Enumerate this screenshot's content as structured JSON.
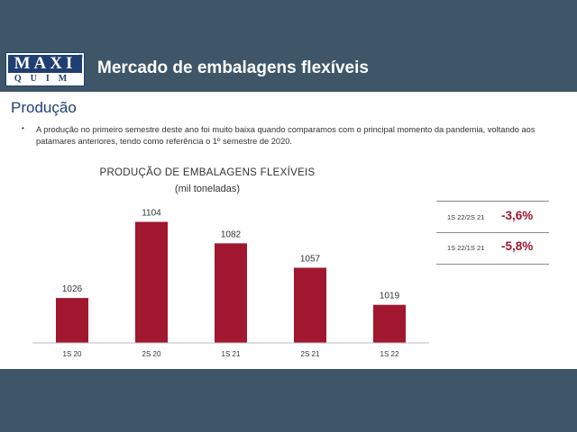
{
  "header": {
    "logo_top": "MAXI",
    "logo_bottom": "QUIM",
    "logo_mark": "®",
    "title": "Mercado de embalagens flexíveis"
  },
  "section_title": "Produção",
  "bullet_text": "A produção no primeiro semestre deste ano foi muito baixa quando comparamos com o principal momento da pandemia, voltando aos patamares anteriores, tendo como referência o 1º semestre de 2020.",
  "comparisons": [
    {
      "label": "1S 22/2S 21",
      "value": "-3,6%"
    },
    {
      "label": "1S 22/1S 21",
      "value": "-5,8%"
    }
  ],
  "colors": {
    "bar": "#a0172f",
    "header": "#3e5667",
    "accent": "#a0172f"
  },
  "chart_data": {
    "type": "bar",
    "title": "PRODUÇÃO DE EMBALAGENS FLEXÍVEIS",
    "subtitle": "(mil toneladas)",
    "categories": [
      "1S 20",
      "2S 20",
      "1S 21",
      "2S 21",
      "1S 22"
    ],
    "values": [
      1026,
      1104,
      1082,
      1057,
      1019
    ],
    "data_labels": [
      "1026",
      "1104",
      "1082",
      "1057",
      "1019"
    ],
    "xlabel": "",
    "ylabel": "",
    "ylim": [
      980,
      1110
    ],
    "grid": false,
    "legend": "none"
  }
}
